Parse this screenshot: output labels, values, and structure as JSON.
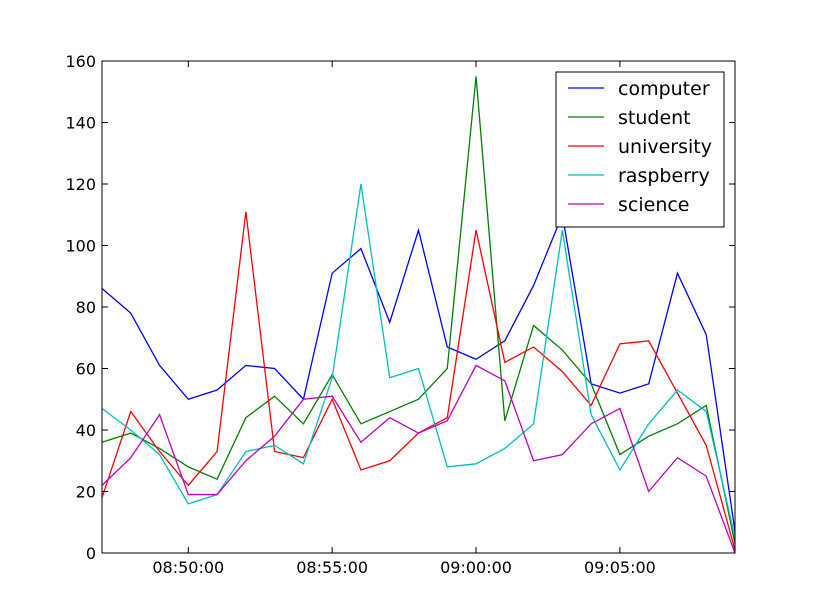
{
  "chart_data": {
    "type": "line",
    "title": "",
    "xlabel": "",
    "ylabel": "",
    "x": [
      "08:47:00",
      "08:48:00",
      "08:49:00",
      "08:50:00",
      "08:51:00",
      "08:52:00",
      "08:53:00",
      "08:54:00",
      "08:55:00",
      "08:56:00",
      "08:57:00",
      "08:58:00",
      "08:59:00",
      "09:00:00",
      "09:01:00",
      "09:02:00",
      "09:03:00",
      "09:04:00",
      "09:05:00",
      "09:06:00",
      "09:07:00",
      "09:08:00",
      "09:09:00"
    ],
    "xlim": [
      "08:47:00",
      "09:09:00"
    ],
    "ylim": [
      0,
      160
    ],
    "x_ticks": [
      "08:50:00",
      "08:55:00",
      "09:00:00",
      "09:05:00"
    ],
    "y_ticks": [
      0,
      20,
      40,
      60,
      80,
      100,
      120,
      140,
      160
    ],
    "grid": false,
    "legend_position": "top-right",
    "series": [
      {
        "name": "computer",
        "color": "#0000ff",
        "values": [
          86,
          78,
          61,
          50,
          53,
          61,
          60,
          50,
          91,
          99,
          75,
          105,
          67,
          63,
          69,
          87,
          110,
          55,
          52,
          55,
          91,
          71,
          7
        ]
      },
      {
        "name": "student",
        "color": "#008000",
        "values": [
          36,
          39,
          34,
          28,
          24,
          44,
          51,
          42,
          58,
          42,
          46,
          50,
          60,
          155,
          43,
          74,
          66,
          55,
          32,
          38,
          42,
          48,
          3
        ]
      },
      {
        "name": "university",
        "color": "#ff0000",
        "values": [
          18,
          46,
          33,
          22,
          33,
          111,
          33,
          31,
          50,
          27,
          30,
          39,
          44,
          105,
          62,
          67,
          59,
          48,
          68,
          69,
          52,
          35,
          1
        ]
      },
      {
        "name": "raspberry",
        "color": "#00bfbf",
        "values": [
          47,
          40,
          32,
          16,
          19,
          33,
          35,
          29,
          57,
          120,
          57,
          60,
          28,
          29,
          34,
          42,
          105,
          45,
          27,
          42,
          53,
          46,
          5
        ]
      },
      {
        "name": "science",
        "color": "#bf00bf",
        "values": [
          22,
          31,
          45,
          19,
          19,
          30,
          38,
          50,
          51,
          36,
          44,
          39,
          43,
          61,
          56,
          30,
          32,
          42,
          47,
          20,
          31,
          25,
          0
        ]
      }
    ]
  }
}
